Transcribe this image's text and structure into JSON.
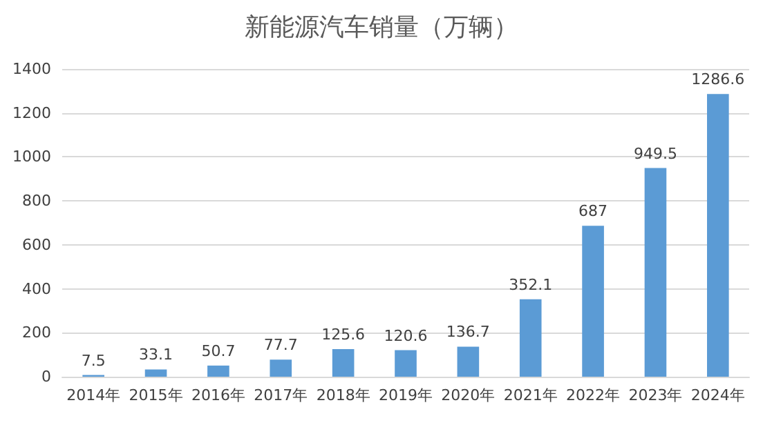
{
  "chart_data": {
    "type": "bar",
    "title": "新能源汽车销量（万辆）",
    "categories": [
      "2014年",
      "2015年",
      "2016年",
      "2017年",
      "2018年",
      "2019年",
      "2020年",
      "2021年",
      "2022年",
      "2023年",
      "2024年"
    ],
    "values": [
      7.5,
      33.1,
      50.7,
      77.7,
      125.6,
      120.6,
      136.7,
      352.1,
      687,
      949.5,
      1286.6
    ],
    "color": "#5b9bd5",
    "ylim": [
      0,
      1400
    ],
    "yticks": [
      0,
      200,
      400,
      600,
      800,
      1000,
      1200,
      1400
    ],
    "grid": "y",
    "data_labels": true
  }
}
